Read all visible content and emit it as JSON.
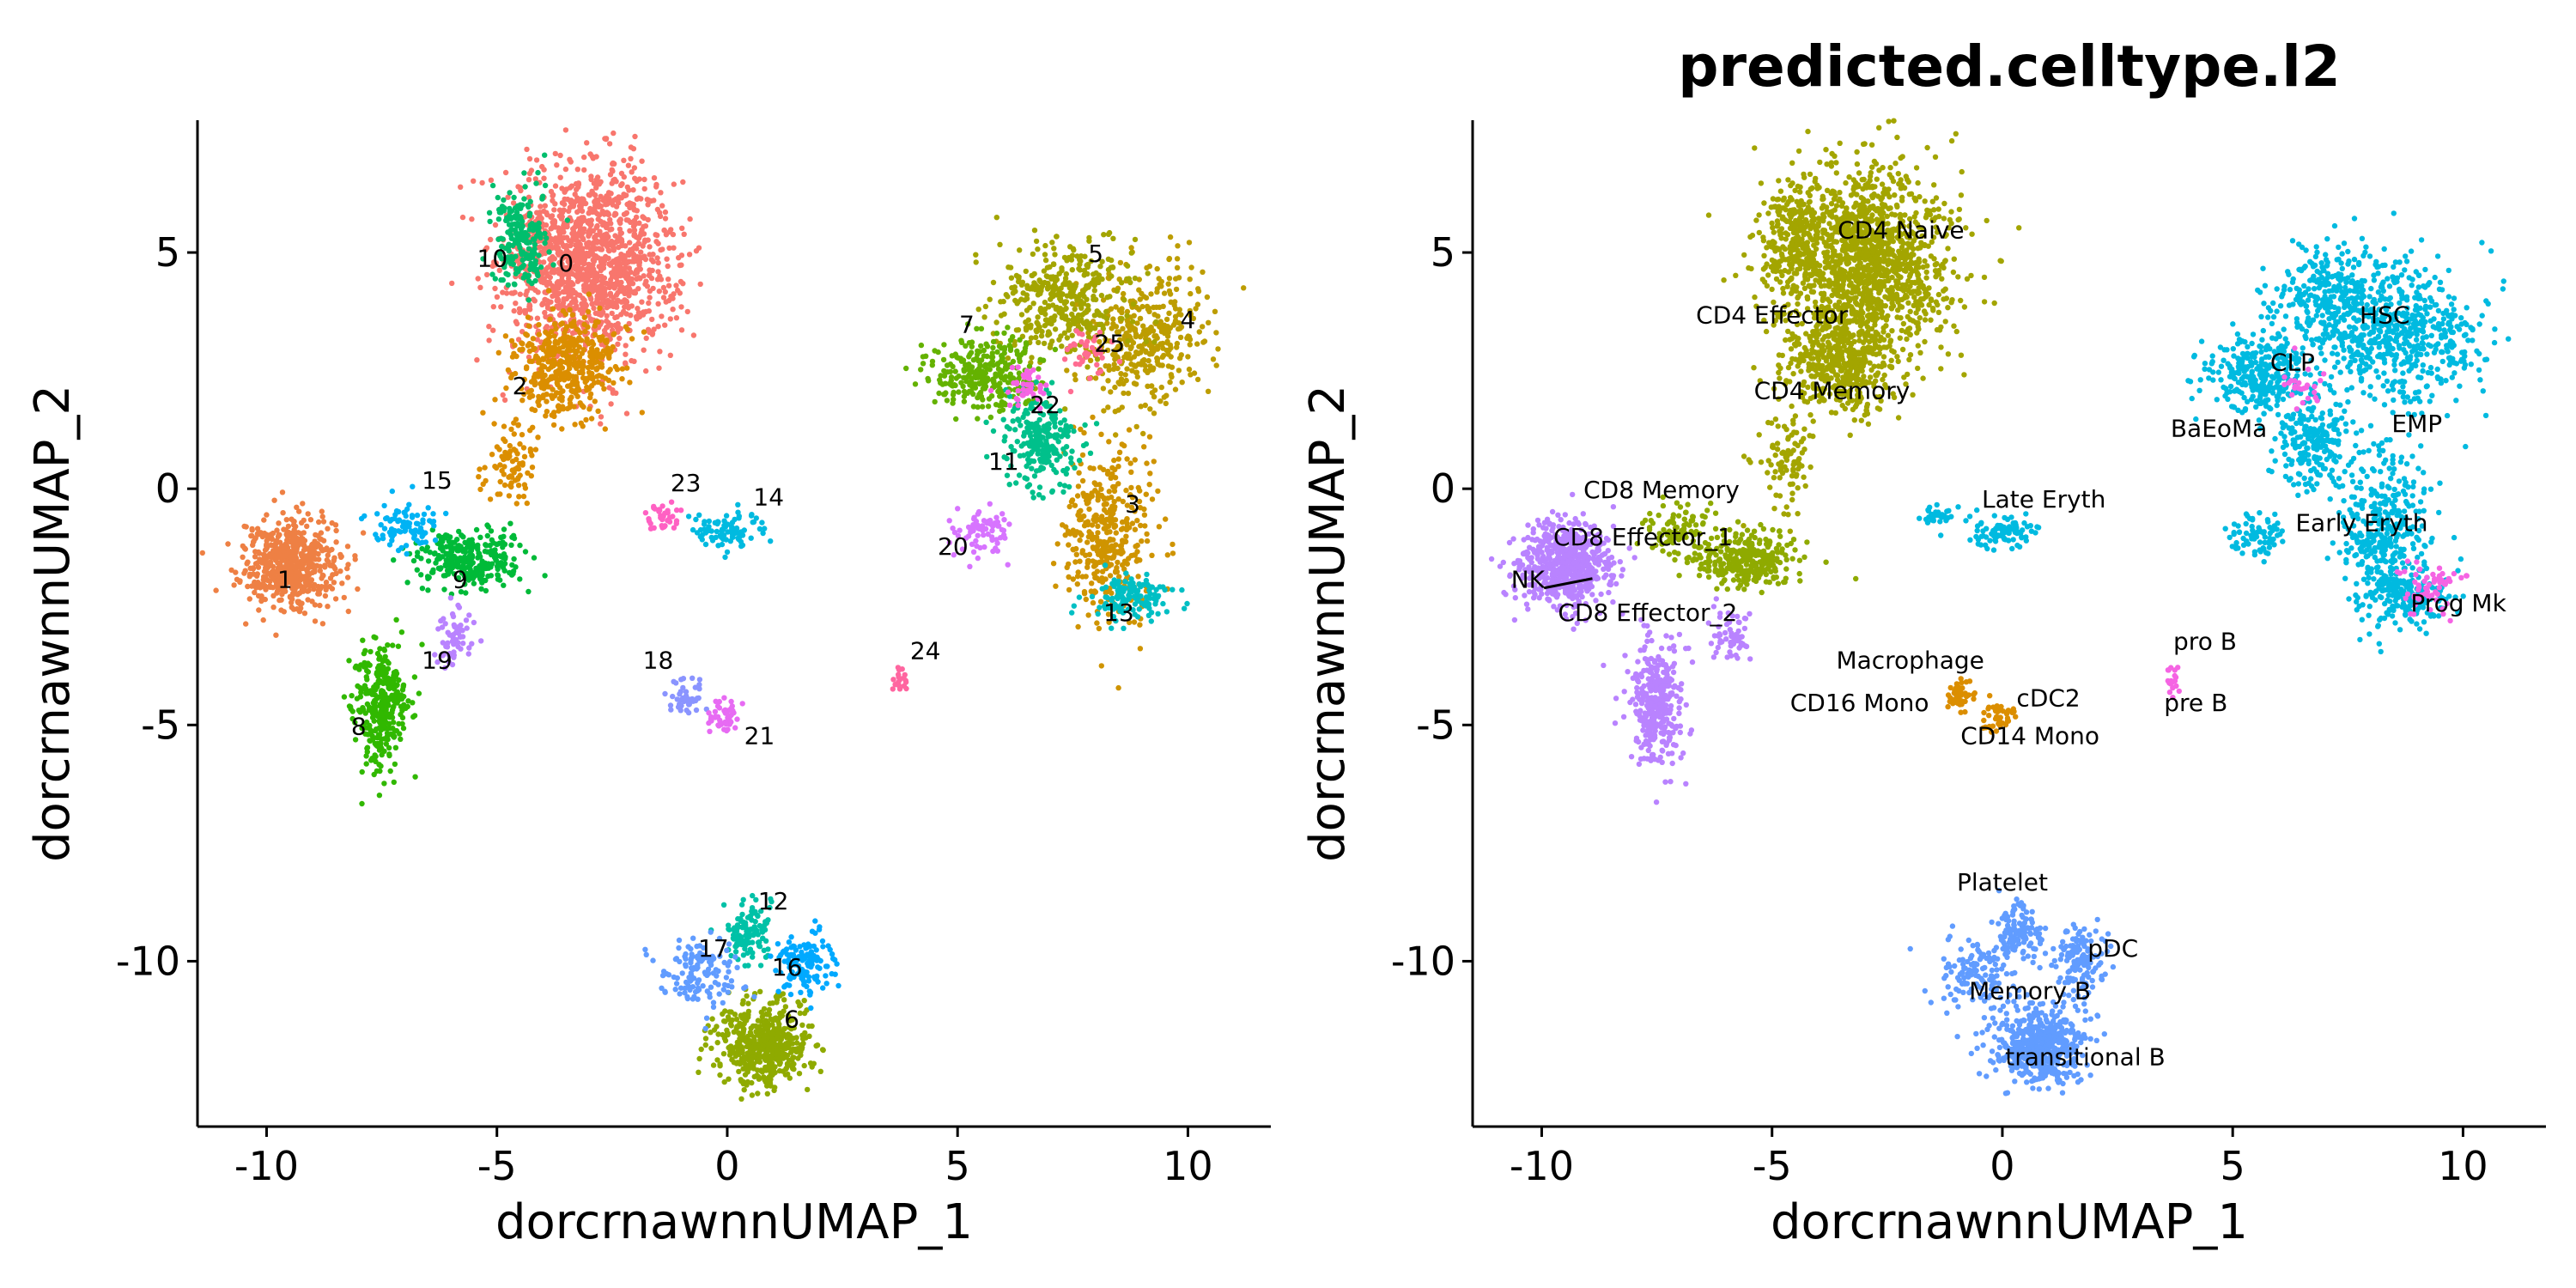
{
  "colors": {
    "0": "#F8766D",
    "1": "#EE8044",
    "2": "#DB8E00",
    "3": "#CF9400",
    "4": "#BD9D00",
    "5": "#A3A500",
    "6": "#8FAA00",
    "7": "#64B200",
    "8": "#31B800",
    "9": "#00BA38",
    "10": "#00BE6D",
    "11": "#00C08B",
    "12": "#00C1A7",
    "13": "#00BFC4",
    "14": "#00BAE0",
    "15": "#00B3F4",
    "16": "#00A9FF",
    "17": "#619CFF",
    "18": "#8A94FF",
    "19": "#B983FF",
    "20": "#D774FF",
    "21": "#E76BF3",
    "22": "#F564E3",
    "23": "#FF61C3",
    "24": "#FF66A0",
    "25": "#FF6C91"
  },
  "chart_data": [
    {
      "type": "scatter",
      "title": "",
      "xlabel": "dorcrnawnnUMAP_1",
      "ylabel": "dorcrnawnnUMAP_2",
      "xlim": [
        -11.5,
        11.8
      ],
      "ylim": [
        -13.5,
        7.8
      ],
      "xticks": [
        -10,
        -5,
        0,
        5,
        10
      ],
      "xtick_labels": [
        "-10",
        "-5",
        "0",
        "5",
        "10"
      ],
      "yticks": [
        -10,
        -5,
        0,
        5
      ],
      "ytick_labels": [
        "-10",
        "-5",
        "0",
        "5"
      ],
      "series": [
        {
          "name": "0",
          "color_key": "0",
          "clusters": [
            {
              "x": -3.0,
              "y": 4.8,
              "sx": 1.1,
              "sy": 1.2,
              "n": 1400
            }
          ]
        },
        {
          "name": "1",
          "color_key": "1",
          "clusters": [
            {
              "x": -9.5,
              "y": -1.6,
              "sx": 0.6,
              "sy": 0.55,
              "n": 600
            }
          ]
        },
        {
          "name": "2",
          "color_key": "2",
          "clusters": [
            {
              "x": -3.5,
              "y": 2.6,
              "sx": 0.65,
              "sy": 0.6,
              "n": 420
            },
            {
              "x": -4.7,
              "y": 0.6,
              "sx": 0.35,
              "sy": 0.6,
              "n": 90
            }
          ]
        },
        {
          "name": "3",
          "color_key": "3",
          "clusters": [
            {
              "x": 8.3,
              "y": -1.0,
              "sx": 0.55,
              "sy": 1.1,
              "n": 380
            }
          ]
        },
        {
          "name": "4",
          "color_key": "4",
          "clusters": [
            {
              "x": 9.0,
              "y": 3.2,
              "sx": 0.85,
              "sy": 0.85,
              "n": 380
            }
          ]
        },
        {
          "name": "5",
          "color_key": "5",
          "clusters": [
            {
              "x": 7.3,
              "y": 4.0,
              "sx": 0.85,
              "sy": 0.7,
              "n": 380
            }
          ]
        },
        {
          "name": "6",
          "color_key": "6",
          "clusters": [
            {
              "x": 0.8,
              "y": -11.8,
              "sx": 0.6,
              "sy": 0.5,
              "n": 520
            }
          ]
        },
        {
          "name": "7",
          "color_key": "7",
          "clusters": [
            {
              "x": 5.6,
              "y": 2.4,
              "sx": 0.65,
              "sy": 0.5,
              "n": 300
            }
          ]
        },
        {
          "name": "8",
          "color_key": "8",
          "clusters": [
            {
              "x": -7.5,
              "y": -4.6,
              "sx": 0.35,
              "sy": 0.75,
              "n": 330
            }
          ]
        },
        {
          "name": "9",
          "color_key": "9",
          "clusters": [
            {
              "x": -5.6,
              "y": -1.5,
              "sx": 0.65,
              "sy": 0.35,
              "n": 300
            }
          ]
        },
        {
          "name": "10",
          "color_key": "10",
          "clusters": [
            {
              "x": -4.5,
              "y": 5.3,
              "sx": 0.35,
              "sy": 0.65,
              "n": 200
            }
          ]
        },
        {
          "name": "11",
          "color_key": "11",
          "clusters": [
            {
              "x": 6.8,
              "y": 1.0,
              "sx": 0.5,
              "sy": 0.6,
              "n": 230
            }
          ]
        },
        {
          "name": "12",
          "color_key": "12",
          "clusters": [
            {
              "x": 0.4,
              "y": -9.4,
              "sx": 0.3,
              "sy": 0.4,
              "n": 120
            }
          ]
        },
        {
          "name": "13",
          "color_key": "13",
          "clusters": [
            {
              "x": 8.8,
              "y": -2.3,
              "sx": 0.5,
              "sy": 0.3,
              "n": 140
            }
          ]
        },
        {
          "name": "14",
          "color_key": "14",
          "clusters": [
            {
              "x": 0.0,
              "y": -0.9,
              "sx": 0.45,
              "sy": 0.2,
              "n": 90
            }
          ]
        },
        {
          "name": "15",
          "color_key": "15",
          "clusters": [
            {
              "x": -7.0,
              "y": -0.8,
              "sx": 0.45,
              "sy": 0.3,
              "n": 90
            }
          ]
        },
        {
          "name": "16",
          "color_key": "16",
          "clusters": [
            {
              "x": 1.7,
              "y": -10.0,
              "sx": 0.35,
              "sy": 0.4,
              "n": 130
            }
          ]
        },
        {
          "name": "17",
          "color_key": "17",
          "clusters": [
            {
              "x": -0.6,
              "y": -10.3,
              "sx": 0.5,
              "sy": 0.45,
              "n": 130
            }
          ]
        },
        {
          "name": "18",
          "color_key": "18",
          "clusters": [
            {
              "x": -0.9,
              "y": -4.4,
              "sx": 0.2,
              "sy": 0.2,
              "n": 45
            }
          ]
        },
        {
          "name": "19",
          "color_key": "19",
          "clusters": [
            {
              "x": -5.9,
              "y": -3.1,
              "sx": 0.25,
              "sy": 0.35,
              "n": 60
            }
          ]
        },
        {
          "name": "20",
          "color_key": "20",
          "clusters": [
            {
              "x": 5.5,
              "y": -0.9,
              "sx": 0.35,
              "sy": 0.3,
              "n": 70
            }
          ]
        },
        {
          "name": "21",
          "color_key": "21",
          "clusters": [
            {
              "x": -0.1,
              "y": -4.8,
              "sx": 0.22,
              "sy": 0.2,
              "n": 45
            }
          ]
        },
        {
          "name": "22",
          "color_key": "22",
          "clusters": [
            {
              "x": 6.5,
              "y": 2.2,
              "sx": 0.3,
              "sy": 0.25,
              "n": 45
            }
          ]
        },
        {
          "name": "23",
          "color_key": "23",
          "clusters": [
            {
              "x": -1.4,
              "y": -0.6,
              "sx": 0.2,
              "sy": 0.15,
              "n": 35
            }
          ]
        },
        {
          "name": "24",
          "color_key": "24",
          "clusters": [
            {
              "x": 3.7,
              "y": -4.1,
              "sx": 0.1,
              "sy": 0.2,
              "n": 18
            }
          ]
        },
        {
          "name": "25",
          "color_key": "25",
          "clusters": [
            {
              "x": 7.8,
              "y": 2.9,
              "sx": 0.35,
              "sy": 0.3,
              "n": 40
            }
          ]
        }
      ],
      "labels": [
        {
          "text": "0",
          "x": -3.5,
          "y": 4.6
        },
        {
          "text": "10",
          "x": -5.1,
          "y": 4.7
        },
        {
          "text": "2",
          "x": -4.5,
          "y": 2.0
        },
        {
          "text": "15",
          "x": -6.3,
          "y": 0.0
        },
        {
          "text": "1",
          "x": -9.6,
          "y": -2.1
        },
        {
          "text": "9",
          "x": -5.8,
          "y": -2.1
        },
        {
          "text": "19",
          "x": -6.3,
          "y": -3.8
        },
        {
          "text": "8",
          "x": -8.0,
          "y": -5.2
        },
        {
          "text": "23",
          "x": -0.9,
          "y": -0.05
        },
        {
          "text": "14",
          "x": 0.9,
          "y": -0.35
        },
        {
          "text": "18",
          "x": -1.5,
          "y": -3.8
        },
        {
          "text": "21",
          "x": 0.7,
          "y": -5.4
        },
        {
          "text": "24",
          "x": 4.3,
          "y": -3.6
        },
        {
          "text": "5",
          "x": 8.0,
          "y": 4.8
        },
        {
          "text": "4",
          "x": 10.0,
          "y": 3.4
        },
        {
          "text": "7",
          "x": 5.2,
          "y": 3.3
        },
        {
          "text": "25",
          "x": 8.3,
          "y": 2.9
        },
        {
          "text": "22",
          "x": 6.9,
          "y": 1.6
        },
        {
          "text": "11",
          "x": 6.0,
          "y": 0.4
        },
        {
          "text": "3",
          "x": 8.8,
          "y": -0.5
        },
        {
          "text": "20",
          "x": 4.9,
          "y": -1.4
        },
        {
          "text": "13",
          "x": 8.5,
          "y": -2.8
        },
        {
          "text": "12",
          "x": 1.0,
          "y": -8.9
        },
        {
          "text": "17",
          "x": -0.3,
          "y": -9.9
        },
        {
          "text": "16",
          "x": 1.3,
          "y": -10.3
        },
        {
          "text": "6",
          "x": 1.4,
          "y": -11.4
        }
      ]
    },
    {
      "type": "scatter",
      "title": "predicted.celltype.l2",
      "xlabel": "dorcrnawnnUMAP_1",
      "ylabel": "dorcrnawnnUMAP_2",
      "xlim": [
        -11.5,
        11.8
      ],
      "ylim": [
        -13.5,
        7.8
      ],
      "xticks": [
        -10,
        -5,
        0,
        5,
        10
      ],
      "xtick_labels": [
        "-10",
        "-5",
        "0",
        "5",
        "10"
      ],
      "yticks": [
        -10,
        -5,
        0,
        5
      ],
      "ytick_labels": [
        "-10",
        "-5",
        "0",
        "5"
      ],
      "series": [
        {
          "name": "CD4 Naive",
          "color_key": "5",
          "clusters": [
            {
              "x": -3.0,
              "y": 4.8,
              "sx": 1.1,
              "sy": 1.2,
              "n": 1400
            },
            {
              "x": -4.5,
              "y": 5.3,
              "sx": 0.35,
              "sy": 0.65,
              "n": 200
            }
          ]
        },
        {
          "name": "CD4 Memory",
          "color_key": "5",
          "clusters": [
            {
              "x": -3.5,
              "y": 2.6,
              "sx": 0.65,
              "sy": 0.6,
              "n": 420
            },
            {
              "x": -4.7,
              "y": 0.6,
              "sx": 0.35,
              "sy": 0.6,
              "n": 90
            }
          ]
        },
        {
          "name": "CD8 Effector_1",
          "color_key": "19",
          "clusters": [
            {
              "x": -9.5,
              "y": -1.6,
              "sx": 0.6,
              "sy": 0.55,
              "n": 600
            },
            {
              "x": -7.5,
              "y": -4.6,
              "sx": 0.35,
              "sy": 0.75,
              "n": 330
            },
            {
              "x": -5.9,
              "y": -3.1,
              "sx": 0.25,
              "sy": 0.35,
              "n": 60
            }
          ]
        },
        {
          "name": "CD8 Memory",
          "color_key": "6",
          "clusters": [
            {
              "x": -5.6,
              "y": -1.5,
              "sx": 0.65,
              "sy": 0.35,
              "n": 300
            },
            {
              "x": -7.0,
              "y": -0.8,
              "sx": 0.45,
              "sy": 0.3,
              "n": 90
            }
          ]
        },
        {
          "name": "HSC",
          "color_key": "14",
          "clusters": [
            {
              "x": 7.3,
              "y": 4.0,
              "sx": 0.85,
              "sy": 0.7,
              "n": 380
            },
            {
              "x": 9.0,
              "y": 3.2,
              "sx": 0.85,
              "sy": 0.85,
              "n": 380
            },
            {
              "x": 5.6,
              "y": 2.4,
              "sx": 0.65,
              "sy": 0.5,
              "n": 300
            },
            {
              "x": 6.8,
              "y": 1.0,
              "sx": 0.5,
              "sy": 0.6,
              "n": 230
            },
            {
              "x": 8.3,
              "y": -1.0,
              "sx": 0.55,
              "sy": 1.1,
              "n": 380
            },
            {
              "x": 8.8,
              "y": -2.3,
              "sx": 0.5,
              "sy": 0.3,
              "n": 140
            },
            {
              "x": 5.5,
              "y": -0.9,
              "sx": 0.35,
              "sy": 0.3,
              "n": 70
            },
            {
              "x": 7.8,
              "y": 2.9,
              "sx": 0.35,
              "sy": 0.3,
              "n": 40
            }
          ]
        },
        {
          "name": "Prog Mk",
          "color_key": "22",
          "clusters": [
            {
              "x": 9.3,
              "y": -2.1,
              "sx": 0.35,
              "sy": 0.35,
              "n": 60
            },
            {
              "x": 6.5,
              "y": 2.2,
              "sx": 0.3,
              "sy": 0.25,
              "n": 25
            }
          ]
        },
        {
          "name": "Late Eryth",
          "color_key": "14",
          "clusters": [
            {
              "x": 0.0,
              "y": -0.9,
              "sx": 0.45,
              "sy": 0.2,
              "n": 90
            },
            {
              "x": -1.4,
              "y": -0.6,
              "sx": 0.2,
              "sy": 0.15,
              "n": 35
            }
          ]
        },
        {
          "name": "Macrophage",
          "color_key": "2",
          "clusters": [
            {
              "x": -0.9,
              "y": -4.4,
              "sx": 0.2,
              "sy": 0.2,
              "n": 45
            },
            {
              "x": -0.1,
              "y": -4.8,
              "sx": 0.22,
              "sy": 0.2,
              "n": 45
            }
          ]
        },
        {
          "name": "pro B",
          "color_key": "22",
          "clusters": [
            {
              "x": 3.7,
              "y": -4.1,
              "sx": 0.1,
              "sy": 0.2,
              "n": 18
            }
          ]
        },
        {
          "name": "Memory B",
          "color_key": "17",
          "clusters": [
            {
              "x": 0.8,
              "y": -11.8,
              "sx": 0.6,
              "sy": 0.5,
              "n": 520
            },
            {
              "x": 0.4,
              "y": -9.4,
              "sx": 0.3,
              "sy": 0.4,
              "n": 120
            },
            {
              "x": 1.7,
              "y": -10.0,
              "sx": 0.35,
              "sy": 0.4,
              "n": 130
            },
            {
              "x": -0.6,
              "y": -10.3,
              "sx": 0.5,
              "sy": 0.45,
              "n": 130
            }
          ]
        }
      ],
      "labels": [
        {
          "text": "CD4 Naive",
          "x": -2.2,
          "y": 5.3
        },
        {
          "text": "CD4 Effector",
          "x": -5.0,
          "y": 3.5
        },
        {
          "text": "CD4 Memory",
          "x": -3.7,
          "y": 1.9
        },
        {
          "text": "CD8 Memory",
          "x": -7.4,
          "y": -0.2
        },
        {
          "text": "CD8 Effector_1",
          "x": -7.8,
          "y": -1.2
        },
        {
          "text": "NK",
          "x": -10.3,
          "y": -2.1
        },
        {
          "text": "CD8 Effector_2",
          "x": -7.7,
          "y": -2.8
        },
        {
          "text": "Late Eryth",
          "x": 0.9,
          "y": -0.4
        },
        {
          "text": "Macrophage",
          "x": -2.0,
          "y": -3.8
        },
        {
          "text": "cDC2",
          "x": 1.0,
          "y": -4.6
        },
        {
          "text": "CD16 Mono",
          "x": -3.1,
          "y": -4.7
        },
        {
          "text": "CD14 Mono",
          "x": 0.6,
          "y": -5.4
        },
        {
          "text": "pro B",
          "x": 4.4,
          "y": -3.4
        },
        {
          "text": "pre B",
          "x": 4.2,
          "y": -4.7
        },
        {
          "text": "HSC",
          "x": 8.3,
          "y": 3.5
        },
        {
          "text": "CLP",
          "x": 6.3,
          "y": 2.5
        },
        {
          "text": "BaEoMa",
          "x": 4.7,
          "y": 1.1
        },
        {
          "text": "EMP",
          "x": 9.0,
          "y": 1.2
        },
        {
          "text": "Early Eryth",
          "x": 7.8,
          "y": -0.9
        },
        {
          "text": "Prog Mk",
          "x": 9.9,
          "y": -2.6
        },
        {
          "text": "Platelet",
          "x": 0.0,
          "y": -8.5
        },
        {
          "text": "pDC",
          "x": 2.4,
          "y": -9.9
        },
        {
          "text": "Memory B",
          "x": 0.6,
          "y": -10.8
        },
        {
          "text": "transitional B",
          "x": 1.8,
          "y": -12.2
        }
      ],
      "callouts": [
        {
          "label": "NK",
          "x0": -9.95,
          "y0": -2.1,
          "x1": -8.9,
          "y1": -1.9
        }
      ]
    }
  ]
}
